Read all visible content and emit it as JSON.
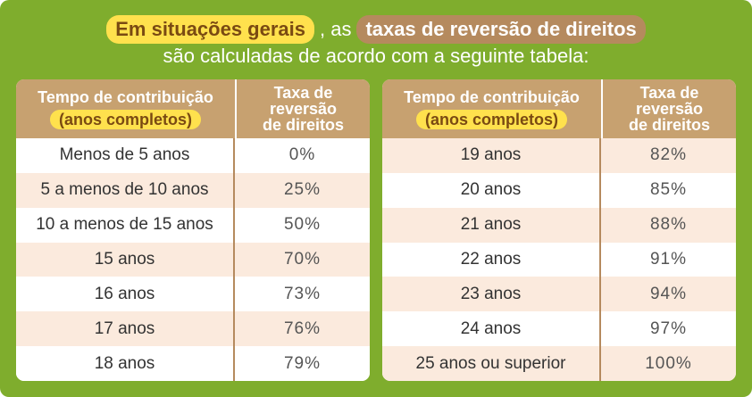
{
  "heading": {
    "highlight_1": "Em situações gerais",
    "connector": ", as",
    "highlight_2": "taxas de reversão de direitos",
    "line2": "são calculadas de acordo com a seguinte tabela:"
  },
  "table_header": {
    "col1_main": "Tempo de contribuição",
    "col1_sub": "(anos completos)",
    "col2_l1": "Taxa de",
    "col2_l2": "reversão",
    "col2_l3": "de direitos"
  },
  "left_rows": [
    {
      "period": "Menos de 5 anos",
      "rate": "0%"
    },
    {
      "period": "5 a menos de 10 anos",
      "rate": "25%"
    },
    {
      "period": "10 a menos de 15 anos",
      "rate": "50%"
    },
    {
      "period": "15 anos",
      "rate": "70%"
    },
    {
      "period": "16 anos",
      "rate": "73%"
    },
    {
      "period": "17 anos",
      "rate": "76%"
    },
    {
      "period": "18 anos",
      "rate": "79%"
    }
  ],
  "right_rows": [
    {
      "period": "19 anos",
      "rate": "82%"
    },
    {
      "period": "20 anos",
      "rate": "85%"
    },
    {
      "period": "21 anos",
      "rate": "88%"
    },
    {
      "period": "22 anos",
      "rate": "91%"
    },
    {
      "period": "23 anos",
      "rate": "94%"
    },
    {
      "period": "24 anos",
      "rate": "97%"
    },
    {
      "period": "25 anos ou superior",
      "rate": "100%"
    }
  ]
}
